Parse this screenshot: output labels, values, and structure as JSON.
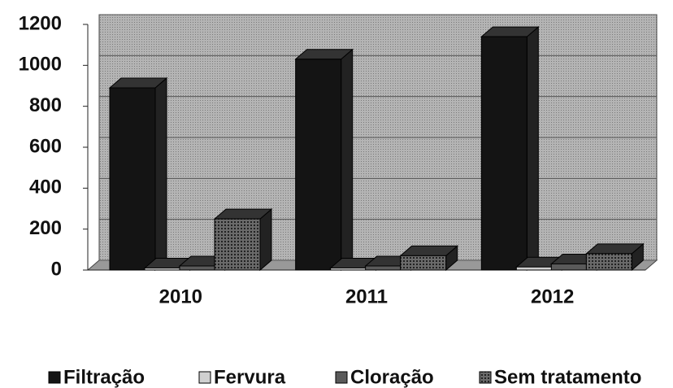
{
  "chart_data": {
    "type": "bar3d",
    "categories": [
      "2010",
      "2011",
      "2012"
    ],
    "series": [
      {
        "name": "Filtração",
        "color": "#141414",
        "values": [
          890,
          1030,
          1140
        ]
      },
      {
        "name": "Fervura",
        "color": "#d0d0d0",
        "values": [
          10,
          10,
          15
        ]
      },
      {
        "name": "Cloração",
        "color": "#5a5a5a",
        "values": [
          20,
          20,
          30
        ]
      },
      {
        "name": "Sem tratamento",
        "color": "#3a3a3a",
        "values": [
          250,
          70,
          80
        ]
      }
    ],
    "ylim": [
      0,
      1200
    ],
    "yticks": [
      0,
      200,
      400,
      600,
      800,
      1000,
      1200
    ],
    "grid": true,
    "legend": "bottom"
  }
}
